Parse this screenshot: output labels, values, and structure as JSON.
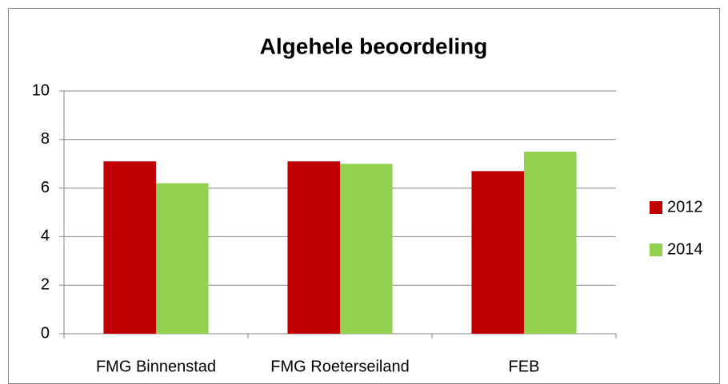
{
  "chart_data": {
    "type": "bar",
    "title": "Algehele beoordeling",
    "categories": [
      "FMG Binnenstad",
      "FMG Roeterseiland",
      "FEB"
    ],
    "series": [
      {
        "name": "2012",
        "color": "#c00000",
        "values": [
          7.1,
          7.1,
          6.7
        ]
      },
      {
        "name": "2014",
        "color": "#92d050",
        "values": [
          6.2,
          7.0,
          7.5
        ]
      }
    ],
    "ylim": [
      0,
      10
    ],
    "yticks": [
      0,
      2,
      4,
      6,
      8,
      10
    ],
    "grid": true,
    "legend": "right"
  }
}
